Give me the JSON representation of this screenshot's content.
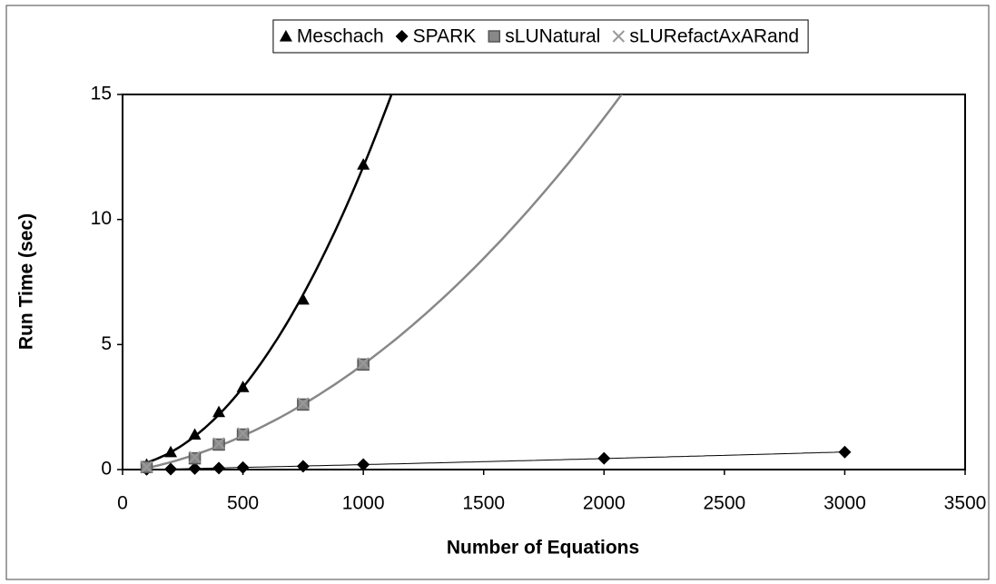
{
  "chart_data": {
    "type": "scatter",
    "xlabel": "Number of Equations",
    "ylabel": "Run Time (sec)",
    "xlim": [
      0,
      3500
    ],
    "ylim": [
      0,
      15
    ],
    "xticks": [
      0,
      500,
      1000,
      1500,
      2000,
      2500,
      3000,
      3500
    ],
    "yticks": [
      0,
      5,
      10,
      15
    ],
    "legend": "top",
    "series": [
      {
        "name": "Meschach",
        "color": "#000000",
        "marker": "triangle",
        "trendline": "poly2",
        "x": [
          100,
          200,
          300,
          400,
          500,
          750,
          1000
        ],
        "values": [
          0.2,
          0.7,
          1.4,
          2.3,
          3.3,
          6.8,
          12.2
        ]
      },
      {
        "name": "SPARK",
        "color": "#000000",
        "marker": "diamond",
        "trendline": "poly2",
        "x": [
          100,
          200,
          300,
          400,
          500,
          750,
          1000,
          2000,
          3000
        ],
        "values": [
          0.01,
          0.02,
          0.04,
          0.06,
          0.08,
          0.13,
          0.2,
          0.45,
          0.7
        ]
      },
      {
        "name": "sLUNatural",
        "color": "#888888",
        "marker": "square",
        "trendline": "poly2",
        "x": [
          100,
          300,
          400,
          500,
          750,
          1000
        ],
        "values": [
          0.1,
          0.45,
          1.0,
          1.4,
          2.6,
          4.2
        ]
      },
      {
        "name": "sLURefactAxARand",
        "color": "#999999",
        "marker": "x",
        "x": [
          100,
          300,
          400,
          500,
          750,
          1000
        ],
        "values": [
          0.1,
          0.5,
          1.05,
          1.45,
          2.65,
          4.25
        ]
      }
    ]
  }
}
